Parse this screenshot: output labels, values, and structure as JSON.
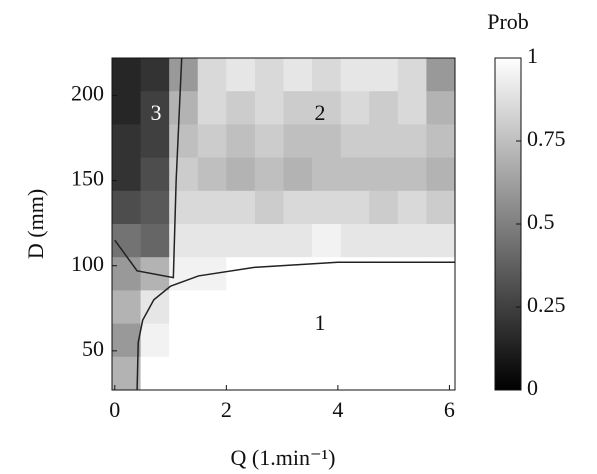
{
  "chart_data": {
    "type": "heatmap",
    "xlabel": "Q (1.min⁻¹)",
    "ylabel": "D (mm)",
    "xlim": [
      -0.05,
      6.1
    ],
    "ylim": [
      27,
      222
    ],
    "xticks": [
      0,
      2,
      4,
      6
    ],
    "yticks": [
      50,
      100,
      150,
      200
    ],
    "z": [
      [
        0.15,
        0.2,
        0.6,
        0.85,
        0.9,
        0.85,
        0.9,
        0.85,
        0.9,
        0.9,
        0.85,
        0.6
      ],
      [
        0.15,
        0.25,
        0.7,
        0.85,
        0.8,
        0.85,
        0.8,
        0.8,
        0.85,
        0.8,
        0.85,
        0.7
      ],
      [
        0.2,
        0.25,
        0.75,
        0.8,
        0.75,
        0.8,
        0.75,
        0.75,
        0.8,
        0.8,
        0.8,
        0.75
      ],
      [
        0.2,
        0.3,
        0.8,
        0.75,
        0.7,
        0.75,
        0.7,
        0.75,
        0.75,
        0.75,
        0.75,
        0.7
      ],
      [
        0.3,
        0.35,
        0.85,
        0.85,
        0.85,
        0.8,
        0.85,
        0.85,
        0.85,
        0.8,
        0.85,
        0.8
      ],
      [
        0.45,
        0.4,
        0.9,
        0.9,
        0.9,
        0.9,
        0.9,
        0.95,
        0.9,
        0.9,
        0.9,
        0.9
      ],
      [
        0.6,
        0.7,
        0.95,
        0.95,
        1,
        1,
        1,
        1,
        1,
        1,
        1,
        1
      ],
      [
        0.7,
        0.9,
        1,
        1,
        1,
        1,
        1,
        1,
        1,
        1,
        1,
        1
      ],
      [
        0.6,
        0.95,
        1,
        1,
        1,
        1,
        1,
        1,
        1,
        1,
        1,
        1
      ],
      [
        0.7,
        1,
        1,
        1,
        1,
        1,
        1,
        1,
        1,
        1,
        1,
        1
      ]
    ],
    "boundaries": [
      {
        "x": [
          0.4,
          0.42,
          0.5,
          0.7,
          1.0,
          1.5,
          2.5,
          4.0,
          6.1
        ],
        "y": [
          27,
          55,
          68,
          80,
          88,
          94,
          99,
          102,
          102
        ]
      },
      {
        "x": [
          0,
          0.4,
          1.05,
          1.1,
          1.2
        ],
        "y": [
          115,
          97,
          93,
          150,
          222
        ]
      }
    ],
    "regions": [
      "1",
      "2",
      "3"
    ],
    "colorbar": {
      "label": "Prob",
      "lim": [
        0,
        1
      ],
      "ticks": [
        0,
        0.25,
        0.5,
        0.75,
        1
      ]
    }
  }
}
